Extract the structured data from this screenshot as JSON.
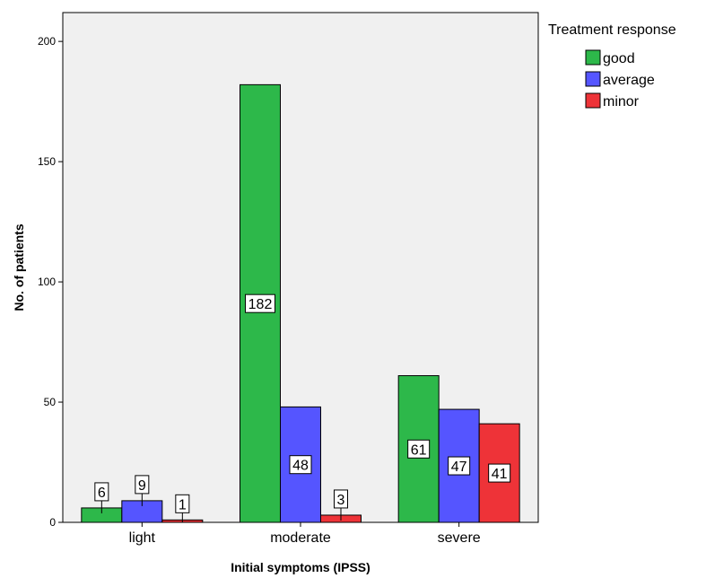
{
  "chart_data": {
    "type": "bar",
    "categories": [
      "light",
      "moderate",
      "severe"
    ],
    "series": [
      {
        "name": "good",
        "color": "#2db84a",
        "values": [
          6,
          182,
          61
        ]
      },
      {
        "name": "average",
        "color": "#5555ff",
        "values": [
          9,
          48,
          47
        ]
      },
      {
        "name": "minor",
        "color": "#ee3338",
        "values": [
          1,
          3,
          41
        ]
      }
    ],
    "xlabel": "Initial symptoms (IPSS)",
    "ylabel": "No. of patients",
    "ylim": [
      0,
      212
    ],
    "yticks": [
      0,
      50,
      100,
      150,
      200
    ],
    "legend": {
      "title": "Treatment response",
      "placement": "top-right-outside"
    },
    "plot_background": "#f0f0f0",
    "grid": false
  }
}
